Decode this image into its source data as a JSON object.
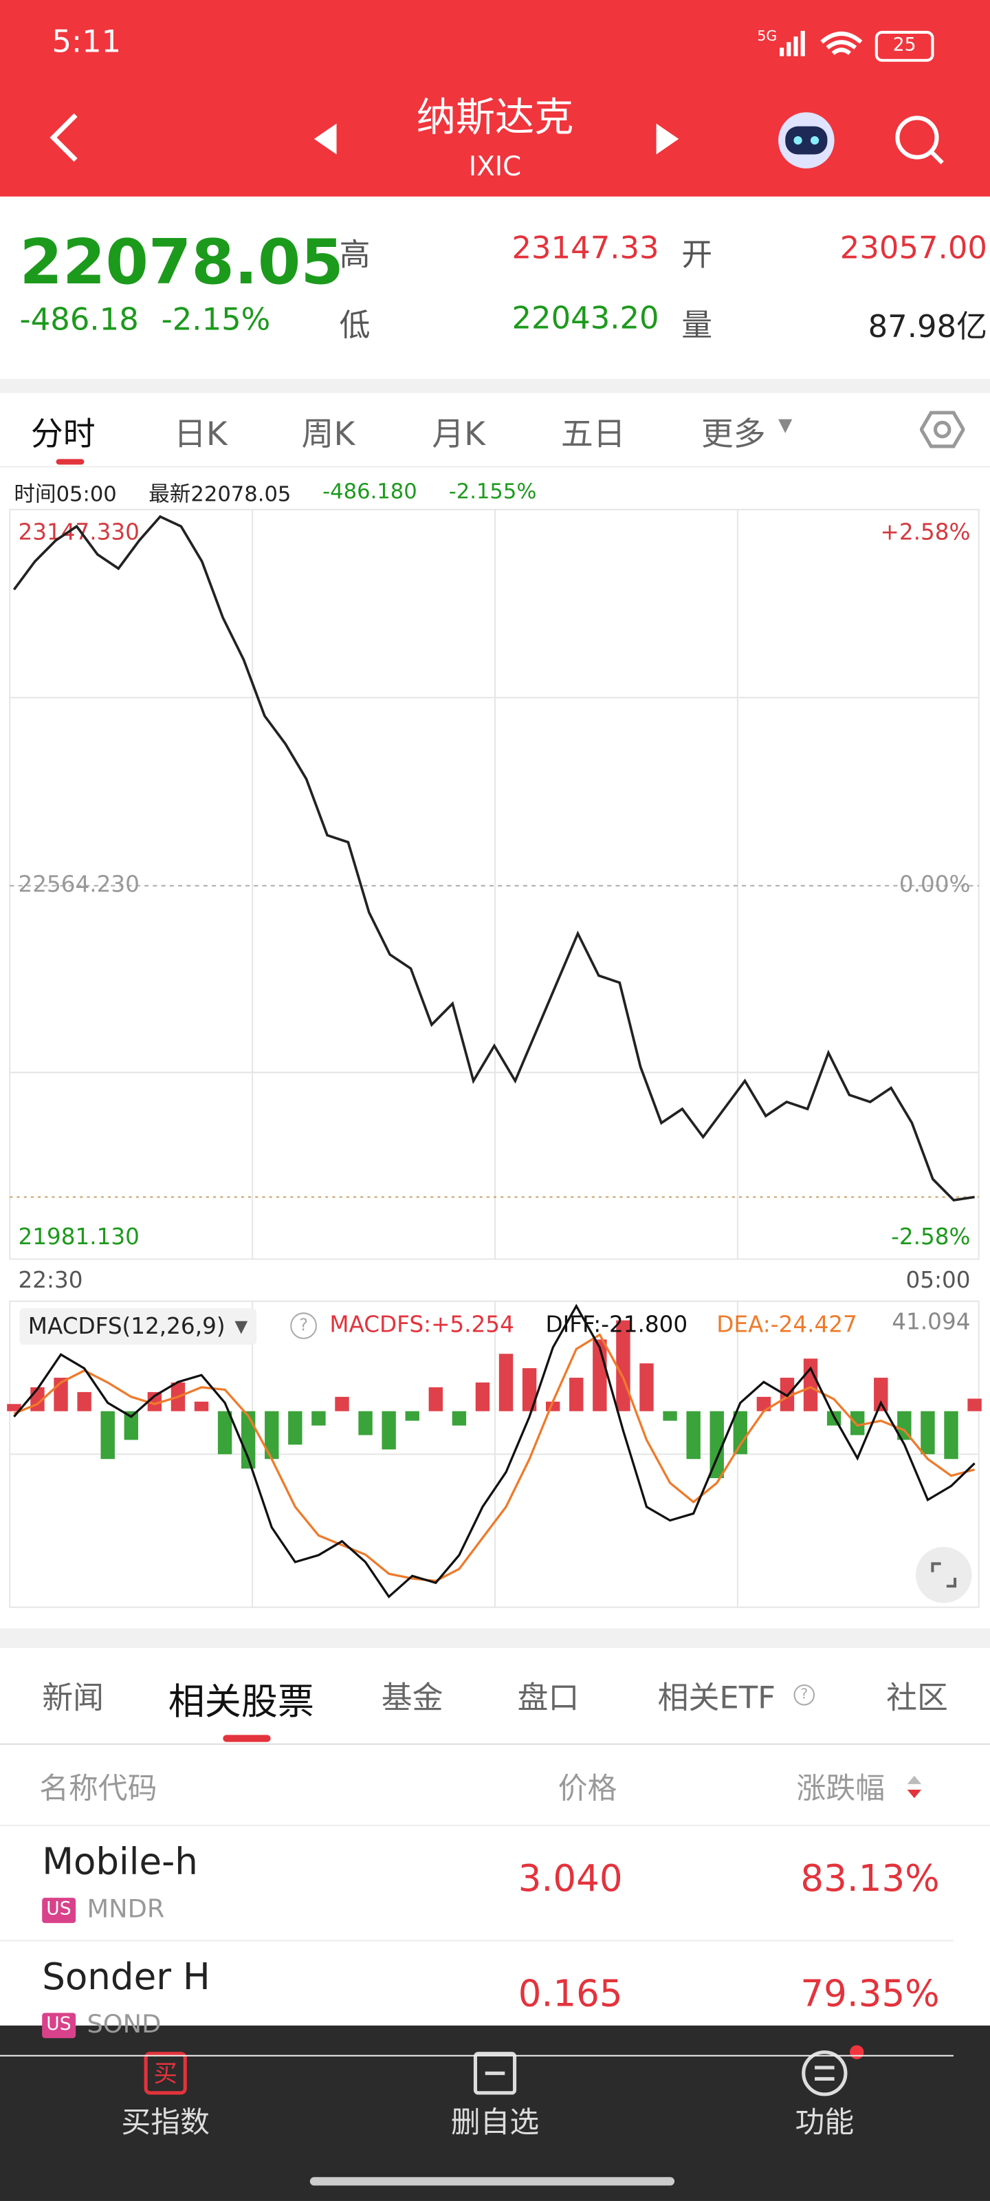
{
  "status": {
    "time": "5:11",
    "battery": "25"
  },
  "header": {
    "title": "纳斯达克",
    "code": "IXIC"
  },
  "quote": {
    "price": "22078.05",
    "change": "-486.18",
    "change_pct": "-2.15%",
    "high_label": "高",
    "high": "23147.33",
    "open_label": "开",
    "open": "23057.00",
    "low_label": "低",
    "low": "22043.20",
    "volume_label": "量",
    "volume": "87.98亿"
  },
  "chart_tabs": [
    "分时",
    "日K",
    "周K",
    "月K",
    "五日",
    "更多"
  ],
  "info_line": {
    "time": "时间05:00",
    "latest": "最新22078.05",
    "change": "-486.180",
    "change_pct": "-2.155%"
  },
  "intraday": {
    "type": "line",
    "color": "#222222",
    "values": [
      23026.7,
      23070.6,
      23103.5,
      23125.4,
      23081.5,
      23059.6,
      23103.5,
      23140.7,
      23125.4,
      23070.6,
      22983,
      22917,
      22829.5,
      22785.6,
      22730.8,
      22643.1,
      22632.2,
      22522.6,
      22456.8,
      22434.9,
      22347.2,
      22380.1,
      22259.5,
      22314.3,
      22259.5,
      22336.2,
      22412.9,
      22489.6,
      22423.9,
      22412.9,
      22281.4,
      22193.7,
      22215.6,
      22171.8,
      22215.6,
      22259.5,
      22204.7,
      22226.6,
      22215.6,
      22303.4,
      22237.6,
      22226.6,
      22248.5,
      22193.7,
      22106,
      22073.2,
      22078.05
    ],
    "ylim": [
      21981.13,
      23147.33
    ],
    "yticks": [
      {
        "value": 23147.33,
        "label": "23147.330"
      },
      {
        "value": 22564.23,
        "label": "22564.230"
      },
      {
        "value": 21981.13,
        "label": "21981.130"
      }
    ],
    "right_labels": [
      "+2.58%",
      "0.00%",
      "-2.58%"
    ],
    "x_labels": [
      "22:30",
      "05:00"
    ]
  },
  "macd": {
    "type": "bar",
    "indicator": "MACDFS(12,26,9)",
    "legend": [
      "MACDFS:+5.254",
      "DIFF:-21.800",
      "DEA:-24.427"
    ],
    "max_label": "41.094",
    "ylim": [
      -82,
      46
    ],
    "up_color": "#e0404a",
    "down_color": "#3aa33a",
    "diff_color": "#111111",
    "dea_color": "#ef7a2a",
    "histogram": [
      3,
      10,
      14,
      8,
      -20,
      -12,
      8,
      12,
      4,
      -18,
      -24,
      -20,
      -14,
      -6,
      6,
      -10,
      -16,
      -4,
      10,
      -6,
      12,
      24,
      18,
      4,
      14,
      30,
      38,
      20,
      -4,
      -20,
      -28,
      -18,
      6,
      14,
      22,
      -6,
      -10,
      14,
      -12,
      -18,
      -20,
      5.254
    ],
    "diff": [
      -2.3,
      9.3,
      23.7,
      17.9,
      3.5,
      -2.3,
      6.4,
      12.2,
      15.1,
      3.5,
      -19.7,
      -48.6,
      -63.1,
      -60.2,
      -54.4,
      -63.1,
      -77.6,
      -68.9,
      -71.8,
      -60.2,
      -40,
      -25.5,
      -2.3,
      26.6,
      44,
      26.6,
      -8.1,
      -40,
      -45.7,
      -42.8,
      -19.7,
      3.5,
      12.2,
      6.4,
      17.9,
      -2.3,
      -19.7,
      3.5,
      -13.9,
      -37.1,
      -31.3,
      -21.8
    ],
    "dea": [
      -1,
      3,
      12,
      17,
      12,
      6,
      3,
      6,
      10,
      9,
      -2,
      -20,
      -40,
      -52,
      -56,
      -60,
      -68,
      -70,
      -71,
      -66,
      -53,
      -40,
      -20,
      4,
      26,
      32,
      14,
      -12,
      -30,
      -38,
      -30,
      -14,
      0,
      6,
      10,
      5,
      -6,
      -4,
      -8,
      -20,
      -27,
      -24.427
    ]
  },
  "list_tabs": [
    "新闻",
    "相关股票",
    "基金",
    "盘口",
    "相关ETF",
    "社区"
  ],
  "table": {
    "headers": [
      "名称代码",
      "价格",
      "涨跌幅"
    ],
    "rows": [
      {
        "name": "Mobile-h",
        "market": "US",
        "code": "MNDR",
        "price": "3.040",
        "change": "83.13%"
      },
      {
        "name": "Sonder H",
        "market": "US",
        "code": "SOND",
        "price": "0.165",
        "change": "79.35%"
      }
    ]
  },
  "bottom_bar": [
    "买指数",
    "删自选",
    "功能"
  ]
}
